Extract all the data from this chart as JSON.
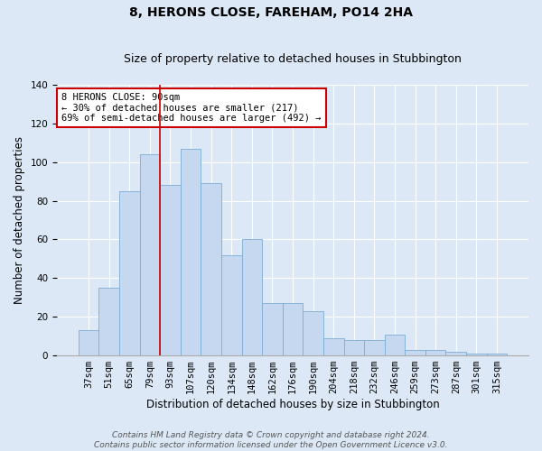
{
  "title": "8, HERONS CLOSE, FAREHAM, PO14 2HA",
  "subtitle": "Size of property relative to detached houses in Stubbington",
  "xlabel": "Distribution of detached houses by size in Stubbington",
  "ylabel": "Number of detached properties",
  "bar_labels": [
    "37sqm",
    "51sqm",
    "65sqm",
    "79sqm",
    "93sqm",
    "107sqm",
    "120sqm",
    "134sqm",
    "148sqm",
    "162sqm",
    "176sqm",
    "190sqm",
    "204sqm",
    "218sqm",
    "232sqm",
    "246sqm",
    "259sqm",
    "273sqm",
    "287sqm",
    "301sqm",
    "315sqm"
  ],
  "bar_values": [
    13,
    35,
    85,
    104,
    88,
    107,
    89,
    52,
    60,
    27,
    27,
    23,
    9,
    8,
    8,
    11,
    3,
    3,
    2,
    1,
    1
  ],
  "bar_color": "#c5d8f0",
  "bar_edgecolor": "#7aadd4",
  "background_color": "#dce8f5",
  "fig_background_color": "#dce8f5",
  "grid_color": "#ffffff",
  "annotation_text": "8 HERONS CLOSE: 90sqm\n← 30% of detached houses are smaller (217)\n69% of semi-detached houses are larger (492) →",
  "annotation_box_color": "#ffffff",
  "annotation_box_edgecolor": "#cc0000",
  "red_line_color": "#cc0000",
  "footer_text": "Contains HM Land Registry data © Crown copyright and database right 2024.\nContains public sector information licensed under the Open Government Licence v3.0.",
  "ylim": [
    0,
    140
  ],
  "yticks": [
    0,
    20,
    40,
    60,
    80,
    100,
    120,
    140
  ],
  "red_line_x": 3.5,
  "title_fontsize": 10,
  "subtitle_fontsize": 9,
  "xlabel_fontsize": 8.5,
  "ylabel_fontsize": 8.5,
  "tick_fontsize": 7.5,
  "annotation_fontsize": 7.5,
  "footer_fontsize": 6.5
}
